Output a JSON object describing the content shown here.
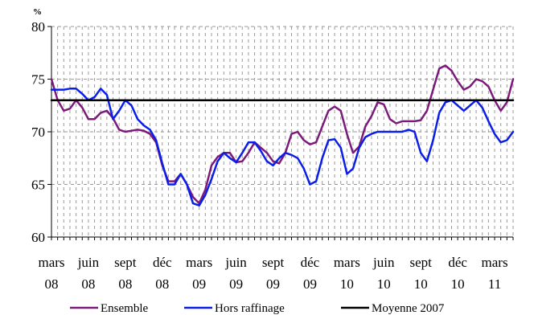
{
  "chart_data": {
    "type": "line",
    "unit": "%",
    "title": "",
    "xlabel": "",
    "ylabel": "",
    "ylim": [
      60,
      80
    ],
    "yticks": [
      60,
      65,
      70,
      75,
      80
    ],
    "x_range": [
      0,
      36
    ],
    "x_ticks": [
      {
        "x": 0,
        "line1": "mars",
        "line2": "08"
      },
      {
        "x": 3,
        "line1": "juin",
        "line2": "08"
      },
      {
        "x": 6,
        "line1": "sept",
        "line2": "08"
      },
      {
        "x": 9,
        "line1": "déc",
        "line2": "08"
      },
      {
        "x": 12,
        "line1": "mars",
        "line2": "09"
      },
      {
        "x": 15,
        "line1": "juin",
        "line2": "09"
      },
      {
        "x": 18,
        "line1": "sept",
        "line2": "09"
      },
      {
        "x": 21,
        "line1": "déc",
        "line2": "09"
      },
      {
        "x": 24,
        "line1": "mars",
        "line2": "10"
      },
      {
        "x": 27,
        "line1": "juin",
        "line2": "10"
      },
      {
        "x": 30,
        "line1": "sept",
        "line2": "10"
      },
      {
        "x": 33,
        "line1": "déc",
        "line2": "10"
      },
      {
        "x": 36,
        "line1": "mars",
        "line2": "11"
      }
    ],
    "grid": "dashed",
    "legend_position": "bottom",
    "series": [
      {
        "name": "Ensemble",
        "color": "#7b1a7b",
        "points": [
          [
            0,
            75.0
          ],
          [
            0.5,
            73.0
          ],
          [
            1,
            72.0
          ],
          [
            1.5,
            72.2
          ],
          [
            2,
            73.0
          ],
          [
            2.5,
            72.3
          ],
          [
            3,
            71.2
          ],
          [
            3.5,
            71.2
          ],
          [
            4,
            71.8
          ],
          [
            4.5,
            72.0
          ],
          [
            5,
            71.3
          ],
          [
            5.5,
            70.2
          ],
          [
            6,
            70.0
          ],
          [
            6.5,
            70.1
          ],
          [
            7,
            70.2
          ],
          [
            7.5,
            70.1
          ],
          [
            8,
            69.8
          ],
          [
            8.5,
            69.0
          ],
          [
            9,
            66.8
          ],
          [
            9.5,
            65.3
          ],
          [
            10,
            65.3
          ],
          [
            10.5,
            66.0
          ],
          [
            11,
            65.0
          ],
          [
            11.5,
            63.8
          ],
          [
            12,
            63.2
          ],
          [
            12.5,
            64.5
          ],
          [
            13,
            66.8
          ],
          [
            13.5,
            67.6
          ],
          [
            14,
            68.0
          ],
          [
            14.5,
            68.0
          ],
          [
            15,
            67.1
          ],
          [
            15.5,
            67.2
          ],
          [
            16,
            68.0
          ],
          [
            16.5,
            69.0
          ],
          [
            17,
            68.5
          ],
          [
            17.5,
            68.0
          ],
          [
            18,
            67.2
          ],
          [
            18.5,
            67.0
          ],
          [
            19,
            68.0
          ],
          [
            19.5,
            69.8
          ],
          [
            20,
            70.0
          ],
          [
            20.5,
            69.2
          ],
          [
            21,
            68.8
          ],
          [
            21.5,
            69.0
          ],
          [
            22,
            70.5
          ],
          [
            22.5,
            72.0
          ],
          [
            23,
            72.4
          ],
          [
            23.5,
            72.0
          ],
          [
            24,
            69.8
          ],
          [
            24.5,
            68.0
          ],
          [
            25,
            68.6
          ],
          [
            25.5,
            70.5
          ],
          [
            26,
            71.5
          ],
          [
            26.5,
            72.8
          ],
          [
            27,
            72.6
          ],
          [
            27.5,
            71.2
          ],
          [
            28,
            70.8
          ],
          [
            28.5,
            71.0
          ],
          [
            29,
            71.0
          ],
          [
            29.5,
            71.0
          ],
          [
            30,
            71.1
          ],
          [
            30.5,
            72.0
          ],
          [
            31,
            74.0
          ],
          [
            31.5,
            76.0
          ],
          [
            32,
            76.3
          ],
          [
            32.5,
            75.8
          ],
          [
            33,
            74.8
          ],
          [
            33.5,
            74.0
          ],
          [
            34,
            74.3
          ],
          [
            34.5,
            75.0
          ],
          [
            35,
            74.8
          ],
          [
            35.5,
            74.3
          ],
          [
            36,
            73.0
          ],
          [
            36.5,
            72.0
          ],
          [
            37,
            72.8
          ],
          [
            37.5,
            75.0
          ]
        ]
      },
      {
        "name": "Hors raffinage",
        "color": "#0a1ee8",
        "points": [
          [
            0,
            74.0
          ],
          [
            0.5,
            74.0
          ],
          [
            1,
            74.0
          ],
          [
            1.5,
            74.1
          ],
          [
            2,
            74.1
          ],
          [
            2.5,
            73.6
          ],
          [
            3,
            73.0
          ],
          [
            3.5,
            73.3
          ],
          [
            4,
            74.1
          ],
          [
            4.5,
            73.5
          ],
          [
            5,
            71.2
          ],
          [
            5.5,
            72.0
          ],
          [
            6,
            73.0
          ],
          [
            6.5,
            72.5
          ],
          [
            7,
            71.2
          ],
          [
            7.5,
            70.6
          ],
          [
            8,
            70.2
          ],
          [
            8.5,
            69.2
          ],
          [
            9,
            67.0
          ],
          [
            9.5,
            65.0
          ],
          [
            10,
            65.0
          ],
          [
            10.5,
            66.0
          ],
          [
            11,
            65.0
          ],
          [
            11.5,
            63.2
          ],
          [
            12,
            63.0
          ],
          [
            12.5,
            64.0
          ],
          [
            13,
            65.5
          ],
          [
            13.5,
            67.2
          ],
          [
            14,
            68.0
          ],
          [
            14.5,
            67.5
          ],
          [
            15,
            67.1
          ],
          [
            15.5,
            68.0
          ],
          [
            16,
            69.0
          ],
          [
            16.5,
            69.0
          ],
          [
            17,
            68.2
          ],
          [
            17.5,
            67.2
          ],
          [
            18,
            66.8
          ],
          [
            18.5,
            67.5
          ],
          [
            19,
            68.0
          ],
          [
            19.5,
            67.8
          ],
          [
            20,
            67.5
          ],
          [
            20.5,
            66.5
          ],
          [
            21,
            65.0
          ],
          [
            21.5,
            65.3
          ],
          [
            22,
            67.5
          ],
          [
            22.5,
            69.2
          ],
          [
            23,
            69.3
          ],
          [
            23.5,
            68.5
          ],
          [
            24,
            66.0
          ],
          [
            24.5,
            66.5
          ],
          [
            25,
            68.5
          ],
          [
            25.5,
            69.5
          ],
          [
            26,
            69.8
          ],
          [
            26.5,
            70.0
          ],
          [
            27,
            70.0
          ],
          [
            27.5,
            70.0
          ],
          [
            28,
            70.0
          ],
          [
            28.5,
            70.0
          ],
          [
            29,
            70.2
          ],
          [
            29.5,
            70.0
          ],
          [
            30,
            68.0
          ],
          [
            30.5,
            67.2
          ],
          [
            31,
            69.2
          ],
          [
            31.5,
            71.8
          ],
          [
            32,
            72.8
          ],
          [
            32.5,
            73.0
          ],
          [
            33,
            72.5
          ],
          [
            33.5,
            72.0
          ],
          [
            34,
            72.5
          ],
          [
            34.5,
            73.0
          ],
          [
            35,
            72.3
          ],
          [
            35.5,
            71.0
          ],
          [
            36,
            69.8
          ],
          [
            36.5,
            69.0
          ],
          [
            37,
            69.2
          ],
          [
            37.5,
            70.0
          ]
        ]
      },
      {
        "name": "Moyenne 2007",
        "color": "#000000",
        "points": [
          [
            0,
            73.0
          ],
          [
            37.5,
            73.0
          ]
        ]
      }
    ]
  }
}
